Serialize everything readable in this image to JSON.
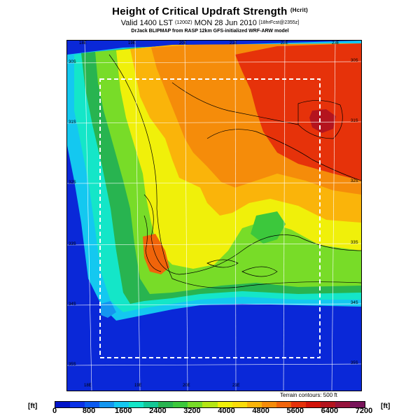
{
  "header": {
    "title": "Height of Critical Updraft Strength",
    "title_unit": "(Hcrit)",
    "valid_prefix": "Valid 1400 LST",
    "valid_time_z": "(1200Z)",
    "valid_date": "MON 28 Jun 2010",
    "forecast_note": "[18hrFcst@2355z]",
    "credit": "DrJack BLIPMAP from RASP 12km GFS-initialized WRF-ARW model"
  },
  "map": {
    "lon_labels_top": [
      "18E",
      "19E",
      "20E",
      "21E",
      "22E",
      "23E"
    ],
    "lon_labels_bottom": [
      "18E",
      "19E",
      "20E",
      "21E"
    ],
    "lat_labels_left": [
      "30S",
      "31S",
      "32S",
      "33S",
      "34S",
      "35S"
    ],
    "lat_labels_right": [
      "30S",
      "31S",
      "32S",
      "33S",
      "34S",
      "35S"
    ],
    "terrain_note": "Terrain contours: 500 ft",
    "ocean_color": "#0a28d8",
    "boundary_box": "dashed-white"
  },
  "colorbar": {
    "unit": "[ft]",
    "tick_labels": [
      "0",
      "800",
      "1600",
      "2400",
      "3200",
      "4000",
      "4800",
      "5600",
      "6400",
      "7200"
    ],
    "colors": [
      "#0014c8",
      "#0a32e6",
      "#0a5af0",
      "#1496f0",
      "#14c8f0",
      "#14e6c8",
      "#14c896",
      "#28b450",
      "#3cc83c",
      "#78dc28",
      "#b4e614",
      "#f0f00a",
      "#fadc0a",
      "#fab40a",
      "#f58c0a",
      "#f0640a",
      "#e6320a",
      "#d2140a",
      "#b4141e",
      "#96143c",
      "#78145a"
    ]
  }
}
